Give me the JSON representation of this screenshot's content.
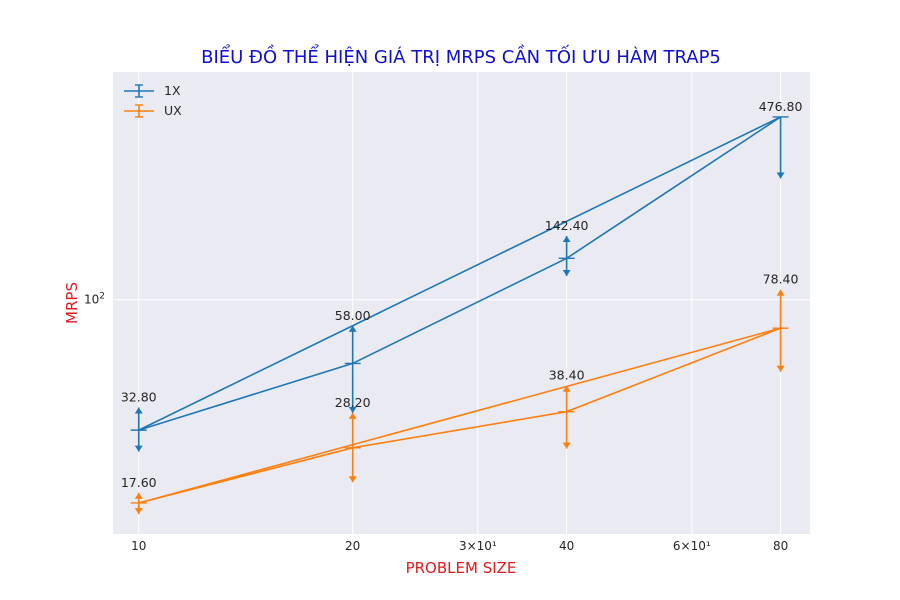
{
  "chart_data": {
    "type": "line",
    "title": "BIỂU ĐỒ THỂ HIỆN GIÁ TRỊ MRPS CẦN TỐI ƯU HÀM TRAP5",
    "xlabel": "PROBLEM SIZE",
    "ylabel": "MRPS",
    "x_scale": "log",
    "y_scale": "log",
    "x_ticks": [
      {
        "value": 10,
        "label": "10"
      },
      {
        "value": 20,
        "label": "20"
      },
      {
        "value": 30,
        "label": "3×10¹"
      },
      {
        "value": 40,
        "label": "40"
      },
      {
        "value": 60,
        "label": "6×10¹"
      },
      {
        "value": 80,
        "label": "80"
      }
    ],
    "y_ticks": [
      {
        "value": 100,
        "base": "10",
        "exp": "2"
      }
    ],
    "xlim": [
      9.2,
      88
    ],
    "ylim": [
      13.5,
      700
    ],
    "grid": true,
    "legend_position": "top-left",
    "series": [
      {
        "name": "1X",
        "color": "#1f77b4",
        "x": [
          10,
          20,
          40,
          80
        ],
        "y": [
          32.8,
          58.0,
          142.4,
          476.8
        ],
        "yerr_lower": [
          5.5,
          20.0,
          20.0,
          195.0
        ],
        "yerr_upper": [
          7.0,
          22.0,
          30.0,
          0.0
        ],
        "labels": [
          "32.80",
          "58.00",
          "142.40",
          "476.80"
        ],
        "trend": [
          [
            10,
            32.8
          ],
          [
            80,
            476.8
          ]
        ]
      },
      {
        "name": "UX",
        "color": "#ff7f0e",
        "x": [
          10,
          20,
          40,
          80
        ],
        "y": [
          17.6,
          28.2,
          38.4,
          78.4
        ],
        "yerr_lower": [
          1.6,
          7.2,
          10.4,
          24.4
        ],
        "yerr_upper": [
          1.6,
          9.8,
          9.6,
          30.6
        ],
        "labels": [
          "17.60",
          "28.20",
          "38.40",
          "78.40"
        ],
        "trend": [
          [
            10,
            17.6
          ],
          [
            80,
            78.4
          ]
        ]
      }
    ]
  }
}
